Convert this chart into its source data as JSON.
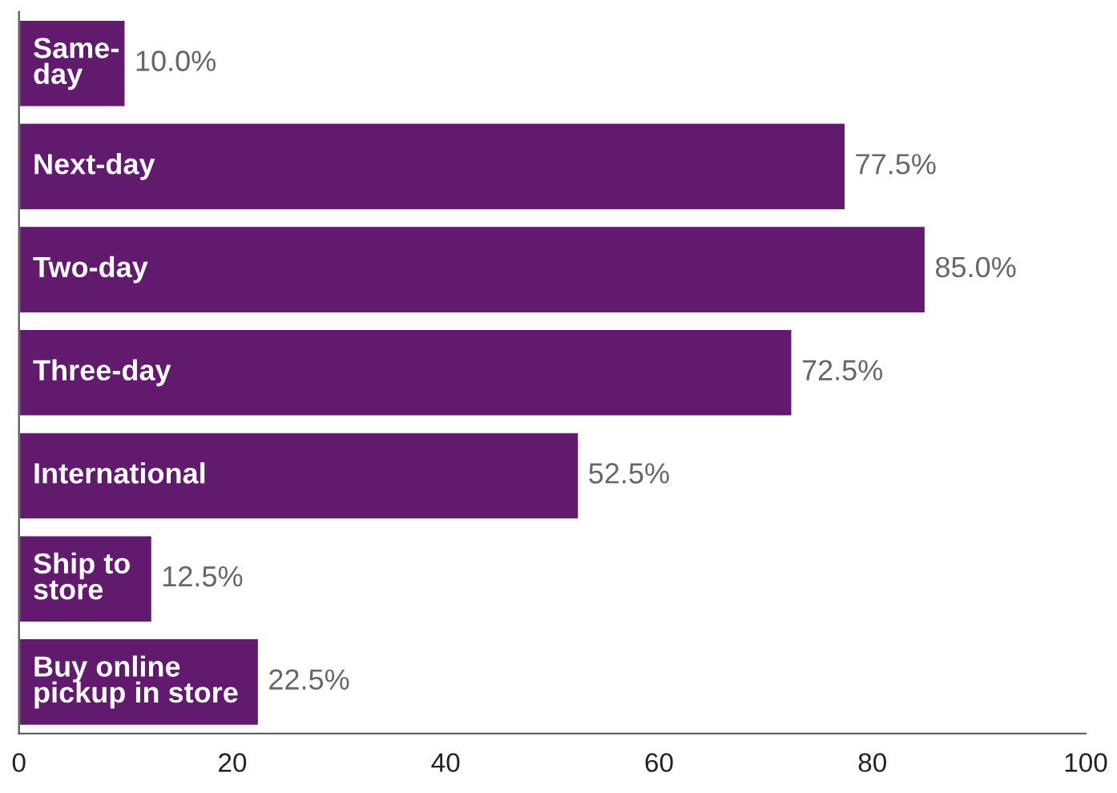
{
  "chart_data": {
    "type": "bar",
    "orientation": "horizontal",
    "categories": [
      "Same-\nday",
      "Next-day",
      "Two-day",
      "Three-day",
      "International",
      "Ship to\nstore",
      "Buy online\npickup in store"
    ],
    "values": [
      10.0,
      77.5,
      85.0,
      72.5,
      52.5,
      12.5,
      22.5
    ],
    "value_labels": [
      "10.0%",
      "77.5%",
      "85.0%",
      "72.5%",
      "52.5%",
      "12.5%",
      "22.5%"
    ],
    "color": "#611a6e",
    "xlim": [
      0,
      100
    ],
    "xticks": [
      0,
      20,
      40,
      60,
      80,
      100
    ],
    "grid": false,
    "legend": false
  }
}
